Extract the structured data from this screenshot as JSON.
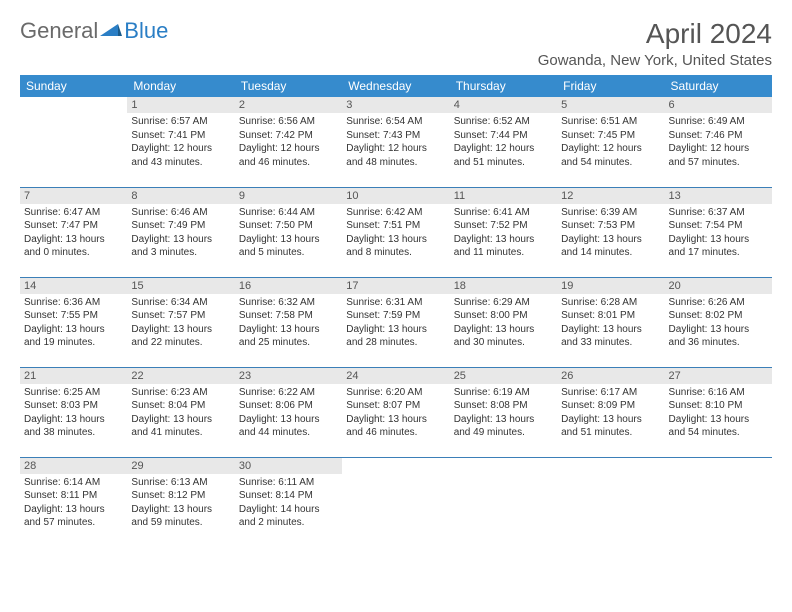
{
  "logo": {
    "general": "General",
    "blue": "Blue"
  },
  "title": "April 2024",
  "location": "Gowanda, New York, United States",
  "colors": {
    "header_bg": "#368bcd",
    "header_text": "#ffffff",
    "daynum_bg": "#e8e8e8",
    "daynum_text": "#555555",
    "border": "#3b7fb8",
    "body_text": "#333333",
    "title_text": "#555555",
    "logo_gray": "#6a6a6a",
    "logo_blue": "#2a7ec5"
  },
  "day_headers": [
    "Sunday",
    "Monday",
    "Tuesday",
    "Wednesday",
    "Thursday",
    "Friday",
    "Saturday"
  ],
  "weeks": [
    [
      null,
      {
        "n": "1",
        "sr": "6:57 AM",
        "ss": "7:41 PM",
        "dl": "12 hours and 43 minutes."
      },
      {
        "n": "2",
        "sr": "6:56 AM",
        "ss": "7:42 PM",
        "dl": "12 hours and 46 minutes."
      },
      {
        "n": "3",
        "sr": "6:54 AM",
        "ss": "7:43 PM",
        "dl": "12 hours and 48 minutes."
      },
      {
        "n": "4",
        "sr": "6:52 AM",
        "ss": "7:44 PM",
        "dl": "12 hours and 51 minutes."
      },
      {
        "n": "5",
        "sr": "6:51 AM",
        "ss": "7:45 PM",
        "dl": "12 hours and 54 minutes."
      },
      {
        "n": "6",
        "sr": "6:49 AM",
        "ss": "7:46 PM",
        "dl": "12 hours and 57 minutes."
      }
    ],
    [
      {
        "n": "7",
        "sr": "6:47 AM",
        "ss": "7:47 PM",
        "dl": "13 hours and 0 minutes."
      },
      {
        "n": "8",
        "sr": "6:46 AM",
        "ss": "7:49 PM",
        "dl": "13 hours and 3 minutes."
      },
      {
        "n": "9",
        "sr": "6:44 AM",
        "ss": "7:50 PM",
        "dl": "13 hours and 5 minutes."
      },
      {
        "n": "10",
        "sr": "6:42 AM",
        "ss": "7:51 PM",
        "dl": "13 hours and 8 minutes."
      },
      {
        "n": "11",
        "sr": "6:41 AM",
        "ss": "7:52 PM",
        "dl": "13 hours and 11 minutes."
      },
      {
        "n": "12",
        "sr": "6:39 AM",
        "ss": "7:53 PM",
        "dl": "13 hours and 14 minutes."
      },
      {
        "n": "13",
        "sr": "6:37 AM",
        "ss": "7:54 PM",
        "dl": "13 hours and 17 minutes."
      }
    ],
    [
      {
        "n": "14",
        "sr": "6:36 AM",
        "ss": "7:55 PM",
        "dl": "13 hours and 19 minutes."
      },
      {
        "n": "15",
        "sr": "6:34 AM",
        "ss": "7:57 PM",
        "dl": "13 hours and 22 minutes."
      },
      {
        "n": "16",
        "sr": "6:32 AM",
        "ss": "7:58 PM",
        "dl": "13 hours and 25 minutes."
      },
      {
        "n": "17",
        "sr": "6:31 AM",
        "ss": "7:59 PM",
        "dl": "13 hours and 28 minutes."
      },
      {
        "n": "18",
        "sr": "6:29 AM",
        "ss": "8:00 PM",
        "dl": "13 hours and 30 minutes."
      },
      {
        "n": "19",
        "sr": "6:28 AM",
        "ss": "8:01 PM",
        "dl": "13 hours and 33 minutes."
      },
      {
        "n": "20",
        "sr": "6:26 AM",
        "ss": "8:02 PM",
        "dl": "13 hours and 36 minutes."
      }
    ],
    [
      {
        "n": "21",
        "sr": "6:25 AM",
        "ss": "8:03 PM",
        "dl": "13 hours and 38 minutes."
      },
      {
        "n": "22",
        "sr": "6:23 AM",
        "ss": "8:04 PM",
        "dl": "13 hours and 41 minutes."
      },
      {
        "n": "23",
        "sr": "6:22 AM",
        "ss": "8:06 PM",
        "dl": "13 hours and 44 minutes."
      },
      {
        "n": "24",
        "sr": "6:20 AM",
        "ss": "8:07 PM",
        "dl": "13 hours and 46 minutes."
      },
      {
        "n": "25",
        "sr": "6:19 AM",
        "ss": "8:08 PM",
        "dl": "13 hours and 49 minutes."
      },
      {
        "n": "26",
        "sr": "6:17 AM",
        "ss": "8:09 PM",
        "dl": "13 hours and 51 minutes."
      },
      {
        "n": "27",
        "sr": "6:16 AM",
        "ss": "8:10 PM",
        "dl": "13 hours and 54 minutes."
      }
    ],
    [
      {
        "n": "28",
        "sr": "6:14 AM",
        "ss": "8:11 PM",
        "dl": "13 hours and 57 minutes."
      },
      {
        "n": "29",
        "sr": "6:13 AM",
        "ss": "8:12 PM",
        "dl": "13 hours and 59 minutes."
      },
      {
        "n": "30",
        "sr": "6:11 AM",
        "ss": "8:14 PM",
        "dl": "14 hours and 2 minutes."
      },
      null,
      null,
      null,
      null
    ]
  ],
  "labels": {
    "sunrise": "Sunrise:",
    "sunset": "Sunset:",
    "daylight": "Daylight:"
  }
}
